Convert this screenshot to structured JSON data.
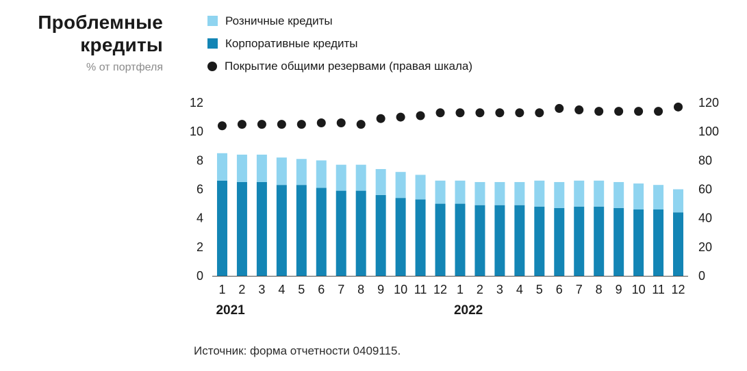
{
  "title": {
    "line1": "Проблемные",
    "line2": "кредиты",
    "subtitle": "% от портфеля"
  },
  "legend": [
    {
      "label": "Розничные кредиты",
      "marker": "square",
      "color": "#8fd4f0"
    },
    {
      "label": "Корпоративные кредиты",
      "marker": "square",
      "color": "#1385b5"
    },
    {
      "label": "Покрытие общими резервами (правая шкала)",
      "marker": "circle",
      "color": "#1a1a1a"
    }
  ],
  "source": "Источник: форма отчетности 0409115.",
  "chart_data": {
    "type": "bar",
    "stacked": true,
    "grid": false,
    "legend_position": "top",
    "categories": [
      "1",
      "2",
      "3",
      "4",
      "5",
      "6",
      "7",
      "8",
      "9",
      "10",
      "11",
      "12",
      "1",
      "2",
      "3",
      "4",
      "5",
      "6",
      "7",
      "8",
      "9",
      "10",
      "11",
      "12"
    ],
    "year_groups": [
      {
        "label": "2021",
        "month_index": 0
      },
      {
        "label": "2022",
        "month_index": 12
      }
    ],
    "series": [
      {
        "name": "Корпоративные кредиты",
        "chart": "bar",
        "axis": "left",
        "color": "#1385b5",
        "values": [
          6.6,
          6.5,
          6.5,
          6.3,
          6.3,
          6.1,
          5.9,
          5.9,
          5.6,
          5.4,
          5.3,
          5.0,
          5.0,
          4.9,
          4.9,
          4.9,
          4.8,
          4.7,
          4.8,
          4.8,
          4.7,
          4.6,
          4.6,
          4.4
        ]
      },
      {
        "name": "Розничные кредиты",
        "chart": "bar",
        "axis": "left",
        "color": "#8fd4f0",
        "values": [
          1.9,
          1.9,
          1.9,
          1.9,
          1.8,
          1.9,
          1.8,
          1.8,
          1.8,
          1.8,
          1.7,
          1.6,
          1.6,
          1.6,
          1.6,
          1.6,
          1.8,
          1.8,
          1.8,
          1.8,
          1.8,
          1.8,
          1.7,
          1.6
        ]
      },
      {
        "name": "Покрытие общими резервами (правая шкала)",
        "chart": "scatter",
        "axis": "right",
        "color": "#1a1a1a",
        "values": [
          104,
          105,
          105,
          105,
          105,
          106,
          106,
          105,
          109,
          110,
          111,
          113,
          113,
          113,
          113,
          113,
          113,
          116,
          115,
          114,
          114,
          114,
          114,
          117
        ]
      }
    ],
    "left_axis": {
      "range": [
        0,
        12
      ],
      "ticks": [
        0,
        2,
        4,
        6,
        8,
        10,
        12
      ]
    },
    "right_axis": {
      "range": [
        0,
        120
      ],
      "ticks": [
        0,
        20,
        40,
        60,
        80,
        100,
        120
      ]
    }
  }
}
